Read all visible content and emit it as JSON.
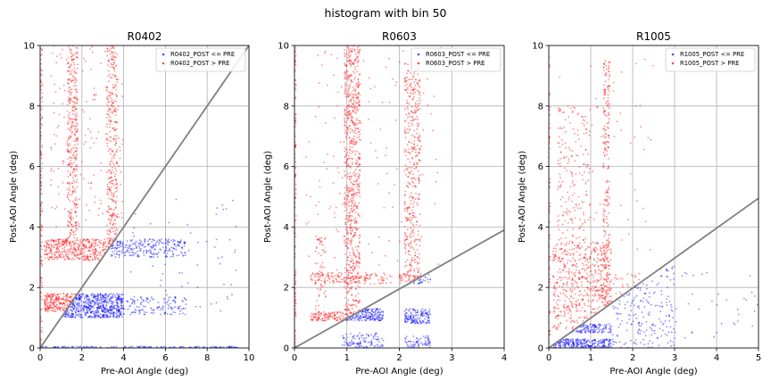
{
  "figure": {
    "suptitle": "histogram with bin 50"
  },
  "chart_data": [
    {
      "type": "scatter",
      "title": "R0402",
      "xlabel": "Pre-AOI Angle (deg)",
      "ylabel": "Post-AOI Angle (deg)",
      "xlim": [
        0,
        10
      ],
      "ylim": [
        0,
        10
      ],
      "xticks": [
        "0",
        "2",
        "4",
        "6",
        "8",
        "10"
      ],
      "yticks": [
        "0",
        "2",
        "4",
        "6",
        "8",
        "10"
      ],
      "grid": true,
      "legend_position": "top-right",
      "reference_line": [
        [
          0,
          0
        ],
        [
          10,
          10
        ]
      ],
      "series": [
        {
          "name": "R0402_POST <= PRE",
          "color": "#0000ff",
          "clusters": [
            {
              "x": [
                1.0,
                4.0
              ],
              "y": [
                1.0,
                1.8
              ],
              "n": 700
            },
            {
              "x": [
                4.0,
                7.0
              ],
              "y": [
                1.1,
                1.7
              ],
              "n": 130
            },
            {
              "x": [
                3.4,
                7.0
              ],
              "y": [
                3.0,
                3.6
              ],
              "n": 260
            },
            {
              "x": [
                0,
                9.5
              ],
              "y": [
                0,
                0.05
              ],
              "n": 140
            },
            {
              "x": [
                4.0,
                9.5
              ],
              "y": [
                1.0,
                5.0
              ],
              "n": 60
            }
          ]
        },
        {
          "name": "R0402_POST > PRE",
          "color": "#ff0000",
          "clusters": [
            {
              "x": [
                0.2,
                3.8
              ],
              "y": [
                2.9,
                3.6
              ],
              "n": 480
            },
            {
              "x": [
                0.2,
                2.0
              ],
              "y": [
                1.2,
                1.8
              ],
              "n": 300
            },
            {
              "x": [
                1.3,
                1.8
              ],
              "y": [
                3.6,
                10
              ],
              "n": 320
            },
            {
              "x": [
                3.2,
                3.7
              ],
              "y": [
                3.6,
                10
              ],
              "n": 300
            },
            {
              "x": [
                0.5,
                4.0
              ],
              "y": [
                4.0,
                10
              ],
              "n": 170
            },
            {
              "x": [
                0,
                0.1
              ],
              "y": [
                0,
                10
              ],
              "n": 120
            }
          ]
        }
      ]
    },
    {
      "type": "scatter",
      "title": "R0603",
      "xlabel": "Pre-AOI Angle (deg)",
      "ylabel": "Post-AOI Angle (deg)",
      "xlim": [
        0,
        4
      ],
      "ylim": [
        0,
        10
      ],
      "xticks": [
        "0",
        "1",
        "2",
        "3",
        "4"
      ],
      "yticks": [
        "0",
        "2",
        "4",
        "6",
        "8",
        "10"
      ],
      "grid": true,
      "legend_position": "top-right",
      "reference_line": [
        [
          0,
          0
        ],
        [
          4,
          3.9
        ]
      ],
      "series": [
        {
          "name": "R0603_POST <= PRE",
          "color": "#0000ff",
          "clusters": [
            {
              "x": [
                0.9,
                1.7
              ],
              "y": [
                0.9,
                1.3
              ],
              "n": 260
            },
            {
              "x": [
                2.1,
                2.6
              ],
              "y": [
                0.8,
                1.3
              ],
              "n": 150
            },
            {
              "x": [
                0.9,
                1.7
              ],
              "y": [
                0,
                0.5
              ],
              "n": 110
            },
            {
              "x": [
                2.1,
                2.6
              ],
              "y": [
                0,
                0.4
              ],
              "n": 70
            },
            {
              "x": [
                2.1,
                2.6
              ],
              "y": [
                2.1,
                2.5
              ],
              "n": 50
            }
          ]
        },
        {
          "name": "R0603_POST > PRE",
          "color": "#ff0000",
          "clusters": [
            {
              "x": [
                0.95,
                1.25
              ],
              "y": [
                1.0,
                10
              ],
              "n": 750
            },
            {
              "x": [
                2.1,
                2.4
              ],
              "y": [
                2.2,
                9.5
              ],
              "n": 420
            },
            {
              "x": [
                0.3,
                2.6
              ],
              "y": [
                2.1,
                2.5
              ],
              "n": 200
            },
            {
              "x": [
                0.3,
                1.0
              ],
              "y": [
                0.9,
                1.2
              ],
              "n": 120
            },
            {
              "x": [
                0.4,
                0.6
              ],
              "y": [
                1.2,
                3.8
              ],
              "n": 60
            },
            {
              "x": [
                0,
                0.03
              ],
              "y": [
                0,
                10
              ],
              "n": 110
            },
            {
              "x": [
                0.2,
                2.8
              ],
              "y": [
                2.5,
                10
              ],
              "n": 140
            }
          ]
        }
      ]
    },
    {
      "type": "scatter",
      "title": "R1005",
      "xlabel": "Pre-AOI Angle (deg)",
      "ylabel": "Post-AOI Angle (deg)",
      "xlim": [
        0,
        5
      ],
      "ylim": [
        0,
        10
      ],
      "xticks": [
        "0",
        "1",
        "2",
        "3",
        "4",
        "5"
      ],
      "yticks": [
        "0",
        "2",
        "4",
        "6",
        "8",
        "10"
      ],
      "grid": true,
      "legend_position": "top-right",
      "reference_line": [
        [
          0,
          0
        ],
        [
          5,
          4.95
        ]
      ],
      "series": [
        {
          "name": "R1005_POST <= PRE",
          "color": "#0000ff",
          "clusters": [
            {
              "x": [
                0.1,
                1.5
              ],
              "y": [
                0,
                0.3
              ],
              "n": 280
            },
            {
              "x": [
                0.1,
                1.5
              ],
              "y": [
                0.5,
                0.8
              ],
              "n": 200
            },
            {
              "x": [
                1.5,
                3.0
              ],
              "y": [
                0,
                2.8
              ],
              "n": 240
            },
            {
              "x": [
                3.0,
                5.0
              ],
              "y": [
                0.2,
                2.5
              ],
              "n": 35
            }
          ]
        },
        {
          "name": "R1005_POST > PRE",
          "color": "#ff0000",
          "clusters": [
            {
              "x": [
                0.1,
                1.5
              ],
              "y": [
                0.6,
                3.5
              ],
              "n": 620
            },
            {
              "x": [
                1.3,
                1.45
              ],
              "y": [
                1.0,
                9.5
              ],
              "n": 240
            },
            {
              "x": [
                0.2,
                1.0
              ],
              "y": [
                3.5,
                8.0
              ],
              "n": 180
            },
            {
              "x": [
                1.5,
                2.4
              ],
              "y": [
                1.2,
                2.5
              ],
              "n": 60
            },
            {
              "x": [
                0,
                0.03
              ],
              "y": [
                0,
                10
              ],
              "n": 60
            },
            {
              "x": [
                0.2,
                2.5
              ],
              "y": [
                3.0,
                9.8
              ],
              "n": 60
            }
          ]
        }
      ]
    }
  ]
}
